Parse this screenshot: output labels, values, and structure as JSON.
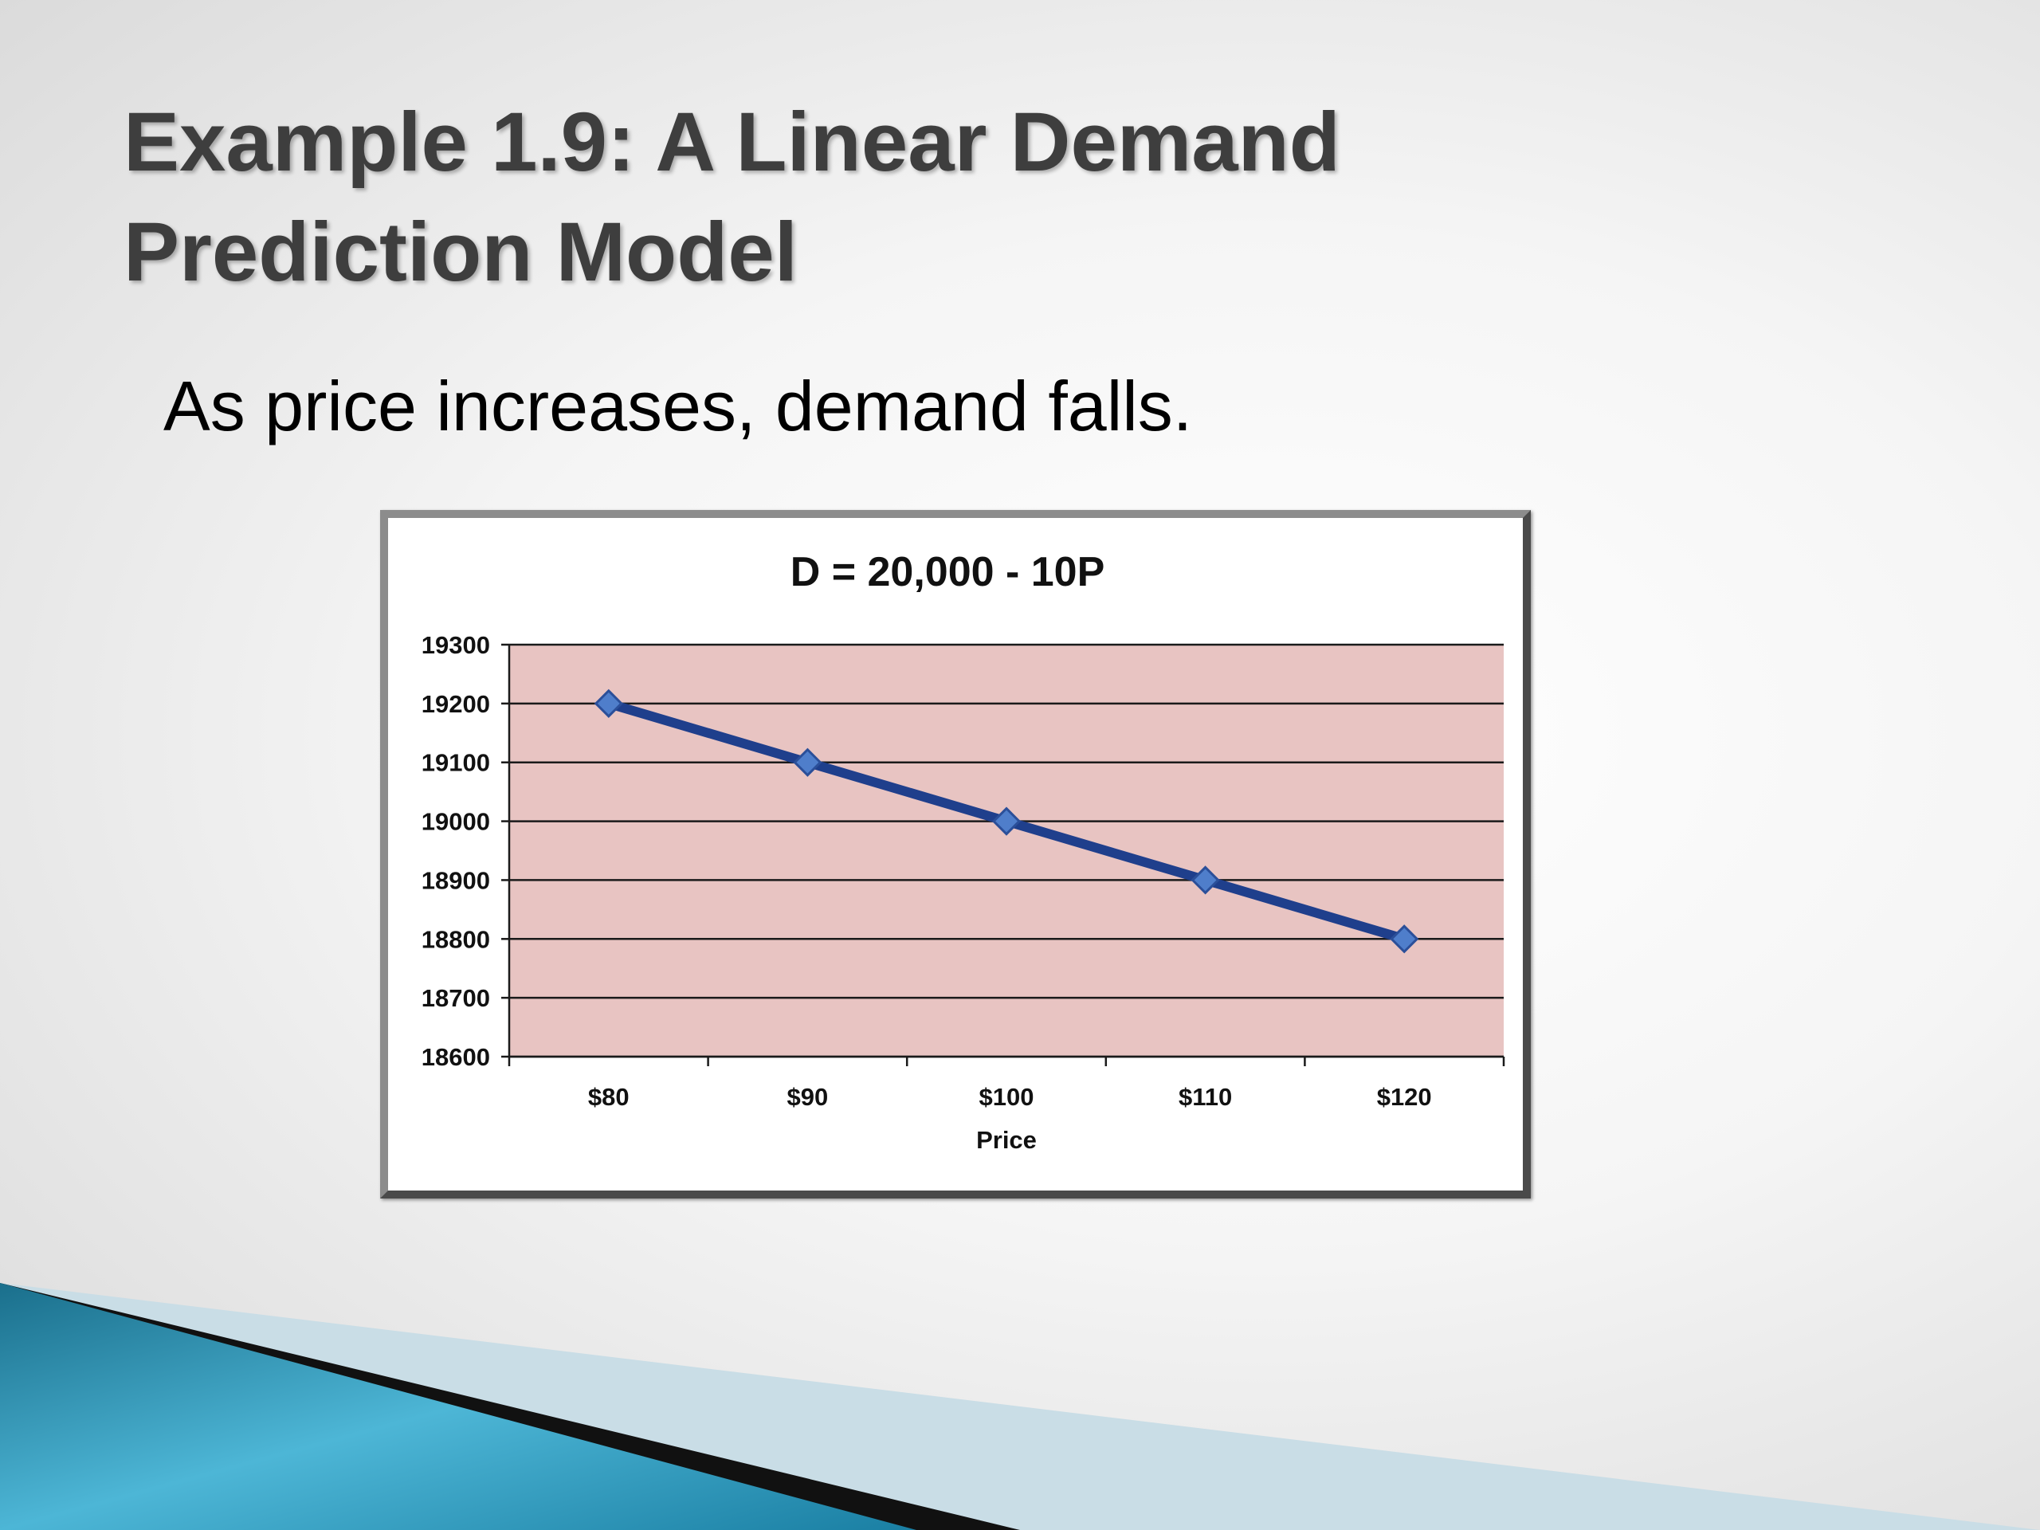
{
  "slide": {
    "title_lines": [
      "Example 1.9:  A Linear Demand",
      "Prediction Model"
    ],
    "bullet": "As price increases, demand falls."
  },
  "chart_data": {
    "type": "line",
    "title": "D = 20,000 - 10P",
    "xlabel": "Price",
    "ylabel": "",
    "categories": [
      "$80",
      "$90",
      "$100",
      "$110",
      "$120"
    ],
    "series": [
      {
        "values": [
          19200,
          19100,
          19000,
          18900,
          18800
        ]
      }
    ],
    "ylim": [
      18600,
      19300
    ],
    "yticks": [
      18600,
      18700,
      18800,
      18900,
      19000,
      19100,
      19200,
      19300
    ],
    "grid": true,
    "legend": "none",
    "colors": {
      "plot_bg": "#e8c4c2",
      "line": "#1f3f8c",
      "marker": "#4f7ecb"
    }
  }
}
